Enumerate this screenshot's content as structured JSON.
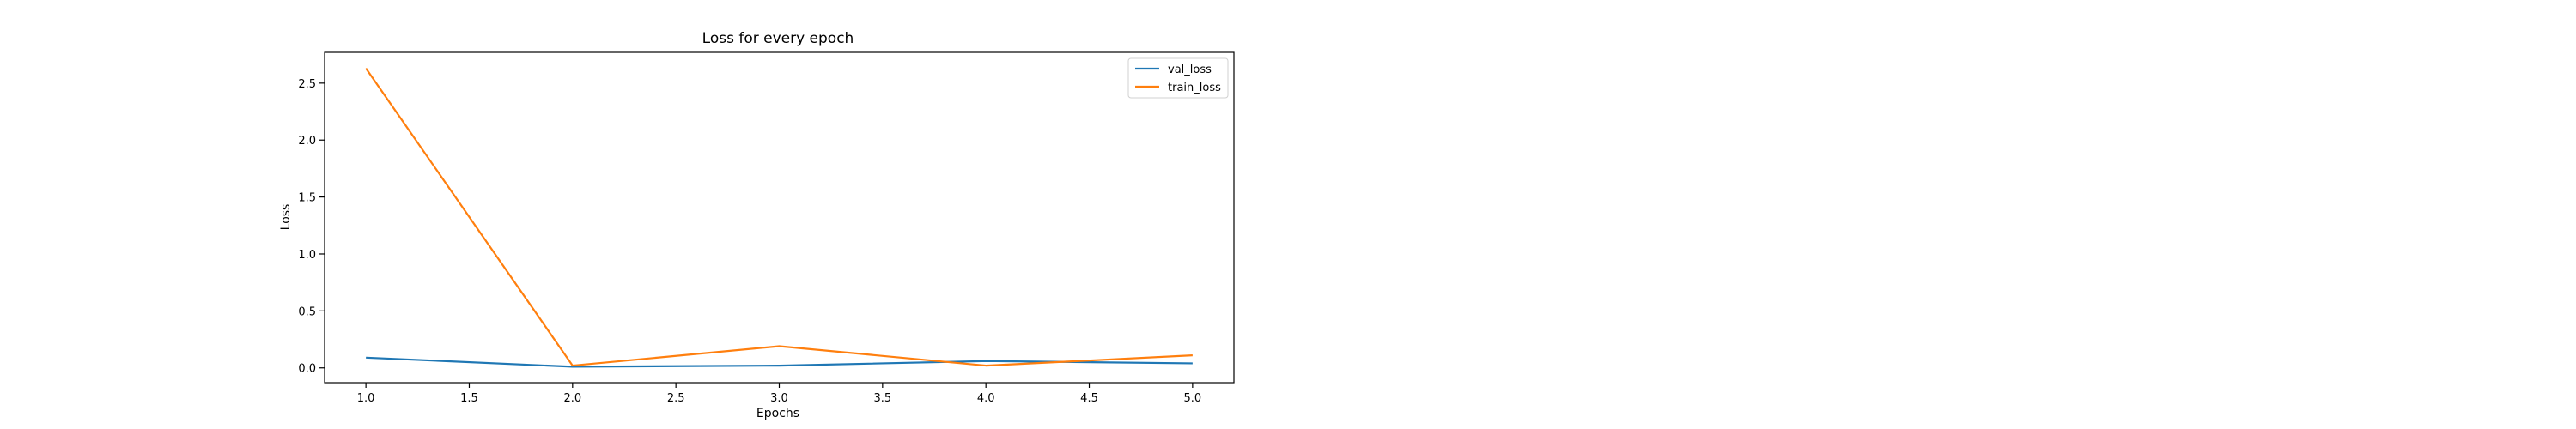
{
  "chart_data": {
    "type": "line",
    "title": "Loss for every epoch",
    "xlabel": "Epochs",
    "ylabel": "Loss",
    "xlim": [
      0.8,
      5.2
    ],
    "ylim": [
      -0.13,
      2.77
    ],
    "xticks": [
      "1.0",
      "1.5",
      "2.0",
      "2.5",
      "3.0",
      "3.5",
      "4.0",
      "4.5",
      "5.0"
    ],
    "yticks": [
      "0.0",
      "0.5",
      "1.0",
      "1.5",
      "2.0",
      "2.5"
    ],
    "x": [
      1,
      2,
      3,
      4,
      5
    ],
    "series": [
      {
        "name": "val_loss",
        "color": "#1f77b4",
        "values": [
          0.09,
          0.01,
          0.02,
          0.06,
          0.04
        ]
      },
      {
        "name": "train_loss",
        "color": "#ff7f0e",
        "values": [
          2.63,
          0.02,
          0.19,
          0.02,
          0.11
        ]
      }
    ],
    "grid": false,
    "legend_position": "top-right"
  }
}
